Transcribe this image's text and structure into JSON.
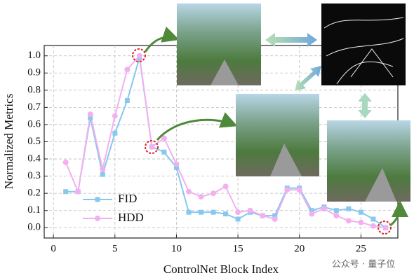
{
  "chart_data": {
    "type": "line",
    "xlabel": "ControlNet Block Index",
    "ylabel": "Normalized Metrics",
    "x": [
      1,
      2,
      3,
      4,
      5,
      6,
      7,
      8,
      9,
      10,
      11,
      12,
      13,
      14,
      15,
      16,
      17,
      18,
      19,
      20,
      21,
      22,
      23,
      24,
      25,
      26,
      27
    ],
    "series": [
      {
        "name": "FID",
        "color": "#87c8ee",
        "marker": "square",
        "values": [
          0.21,
          0.21,
          0.64,
          0.31,
          0.55,
          0.74,
          0.99,
          0.47,
          0.44,
          0.35,
          0.09,
          0.09,
          0.09,
          0.08,
          0.05,
          0.09,
          0.07,
          0.07,
          0.23,
          0.23,
          0.1,
          0.12,
          0.1,
          0.11,
          0.09,
          0.05,
          0.0
        ]
      },
      {
        "name": "HDD",
        "color": "#f3b0f0",
        "marker": "circle",
        "values": [
          0.38,
          0.21,
          0.66,
          0.34,
          0.65,
          0.92,
          1.0,
          0.47,
          0.52,
          0.37,
          0.21,
          0.18,
          0.2,
          0.24,
          0.09,
          0.1,
          0.07,
          0.05,
          0.22,
          0.22,
          0.08,
          0.11,
          0.07,
          0.04,
          0.03,
          0.01,
          0.0
        ]
      }
    ],
    "xlim": [
      -0.75,
      28
    ],
    "ylim": [
      -0.06,
      1.06
    ],
    "xticks": [
      0,
      5,
      10,
      15,
      20,
      25
    ],
    "yticks": [
      {
        "value": 0,
        "label": "0.0"
      },
      {
        "value": 0.1,
        "label": "0.1"
      },
      {
        "value": 0.2,
        "label": "0.2"
      },
      {
        "value": 0.3,
        "label": "0.3"
      },
      {
        "value": 0.4,
        "label": "0.4"
      },
      {
        "value": 0.5,
        "label": "0.5"
      },
      {
        "value": 0.6,
        "label": "0.6"
      },
      {
        "value": 0.7,
        "label": "0.7"
      },
      {
        "value": 0.8,
        "label": "0.8"
      },
      {
        "value": 0.9,
        "label": "0.9"
      },
      {
        "value": 1,
        "label": "1.0"
      }
    ],
    "grid": true,
    "legend": "lower-left",
    "watermark": "公众号 · 量子位"
  }
}
